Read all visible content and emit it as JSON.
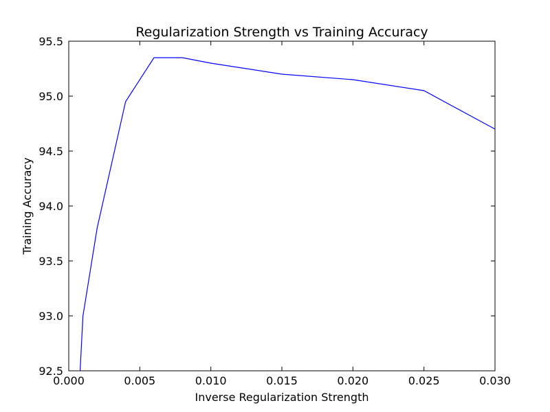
{
  "chart_data": {
    "type": "line",
    "title": "Regularization Strength vs Training Accuracy",
    "xlabel": "Inverse Regularization Strength",
    "ylabel": "Training Accuracy",
    "xlim": [
      0.0,
      0.03
    ],
    "ylim": [
      92.5,
      95.5
    ],
    "x_ticks": [
      "0.000",
      "0.005",
      "0.010",
      "0.015",
      "0.020",
      "0.025",
      "0.030"
    ],
    "y_ticks": [
      "92.5",
      "93.0",
      "93.5",
      "94.0",
      "94.5",
      "95.0",
      "95.5"
    ],
    "grid": false,
    "series": [
      {
        "color": "#0000ff",
        "x": [
          0.0008,
          0.001,
          0.002,
          0.004,
          0.006,
          0.008,
          0.01,
          0.015,
          0.02,
          0.025,
          0.03
        ],
        "y": [
          92.5,
          93.0,
          93.8,
          94.95,
          95.35,
          95.35,
          95.3,
          95.2,
          95.15,
          95.05,
          94.7
        ]
      }
    ]
  }
}
